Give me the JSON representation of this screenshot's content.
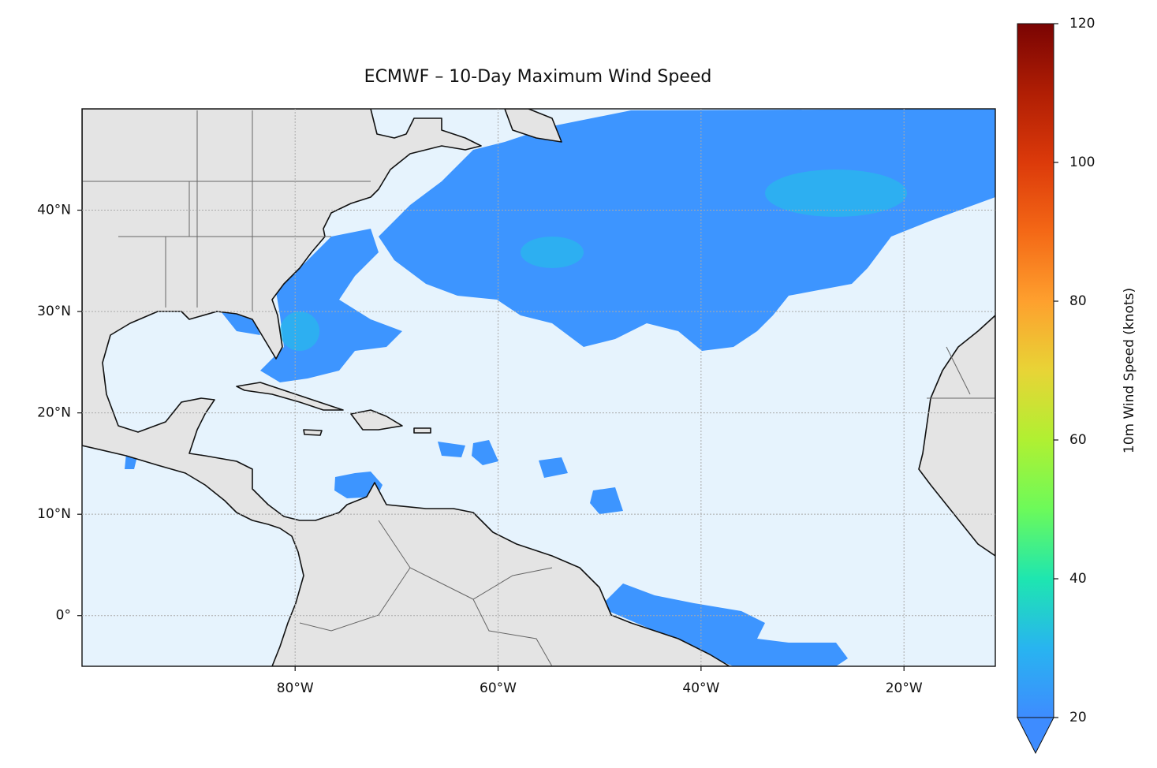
{
  "chart_data": {
    "type": "map",
    "title": "ECMWF – 10-Day Maximum Wind Speed",
    "xlim": [
      -101,
      -11
    ],
    "ylim": [
      -5,
      50
    ],
    "xticks": [
      {
        "value": -80,
        "label": "80°W"
      },
      {
        "value": -60,
        "label": "60°W"
      },
      {
        "value": -40,
        "label": "40°W"
      },
      {
        "value": -20,
        "label": "20°W"
      }
    ],
    "yticks": [
      {
        "value": 0,
        "label": "0°"
      },
      {
        "value": 10,
        "label": "10°N"
      },
      {
        "value": 20,
        "label": "20°N"
      },
      {
        "value": 30,
        "label": "30°N"
      },
      {
        "value": 40,
        "label": "40°N"
      }
    ],
    "grid": true,
    "colorbar": {
      "label": "10m Wind Speed (knots)",
      "lim": [
        20,
        120
      ],
      "ticks": [
        20,
        40,
        60,
        80,
        100,
        120
      ]
    }
  }
}
